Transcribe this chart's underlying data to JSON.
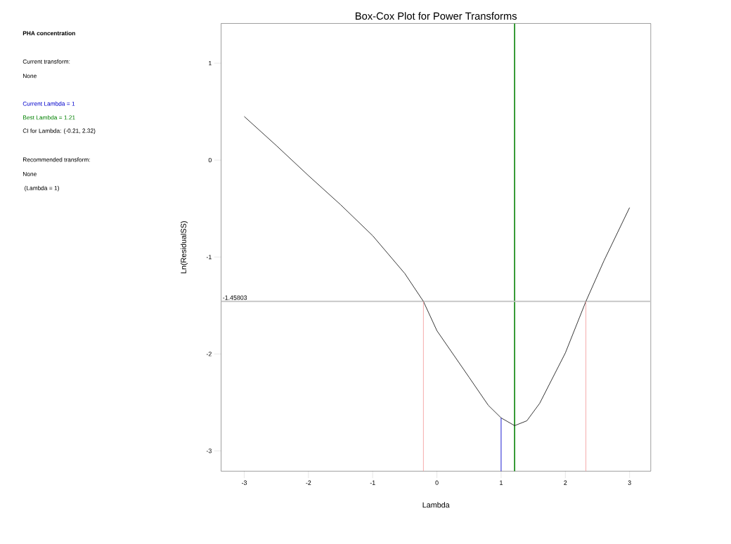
{
  "chart_data": {
    "type": "line",
    "title": "Box-Cox Plot for Power Transforms",
    "subtitle": "PHA concentration",
    "xlabel": "Lambda",
    "ylabel": "Ln(ResidualSS)",
    "annotations": [
      "Current transform:",
      "None",
      "CI for Lambda: (-0.21, 2.32)",
      "Recommended transform:",
      "None",
      " (Lambda = 1)"
    ],
    "xlim": [
      -3.36,
      3.33
    ],
    "ylim": [
      -3.21,
      1.41
    ],
    "xticks": [
      -3,
      -2,
      -1,
      0,
      1,
      2,
      3
    ],
    "yticks": [
      -3,
      -2,
      -1,
      0,
      1
    ],
    "grid": false,
    "line_style": "solid",
    "series": [
      {
        "x": [
          -3,
          -2.5,
          -2,
          -1.5,
          -1,
          -0.5,
          -0.21,
          0,
          0.5,
          0.8,
          1,
          1.21,
          1.4,
          1.6,
          2,
          2.32,
          2.6,
          3
        ],
        "values": [
          0.45,
          0.15,
          -0.16,
          -0.46,
          -0.78,
          -1.17,
          -1.458,
          -1.76,
          -2.24,
          -2.53,
          -2.66,
          -2.74,
          -2.69,
          -2.51,
          -1.99,
          -1.458,
          -1.04,
          -0.49
        ],
        "color": "#000000"
      },
      {
        "name": "Current Lambda = 1",
        "x": [
          1,
          1
        ],
        "values": [
          -3.21,
          -2.66
        ],
        "color": "#0000cc"
      },
      {
        "x": [
          -0.21,
          -0.21
        ],
        "values": [
          -3.21,
          -1.458
        ],
        "color": "#f4a0a0"
      },
      {
        "x": [
          2.32,
          2.32
        ],
        "values": [
          -3.21,
          -1.458
        ],
        "color": "#f4a0a0"
      }
    ],
    "ref_lines": [
      {
        "axis": "x",
        "value": 1.21,
        "label": "Best Lambda = 1.21",
        "color": "#008000"
      },
      {
        "axis": "y",
        "value": -1.45803,
        "label": "-1.45803",
        "color": "#c0c0c0"
      }
    ]
  }
}
